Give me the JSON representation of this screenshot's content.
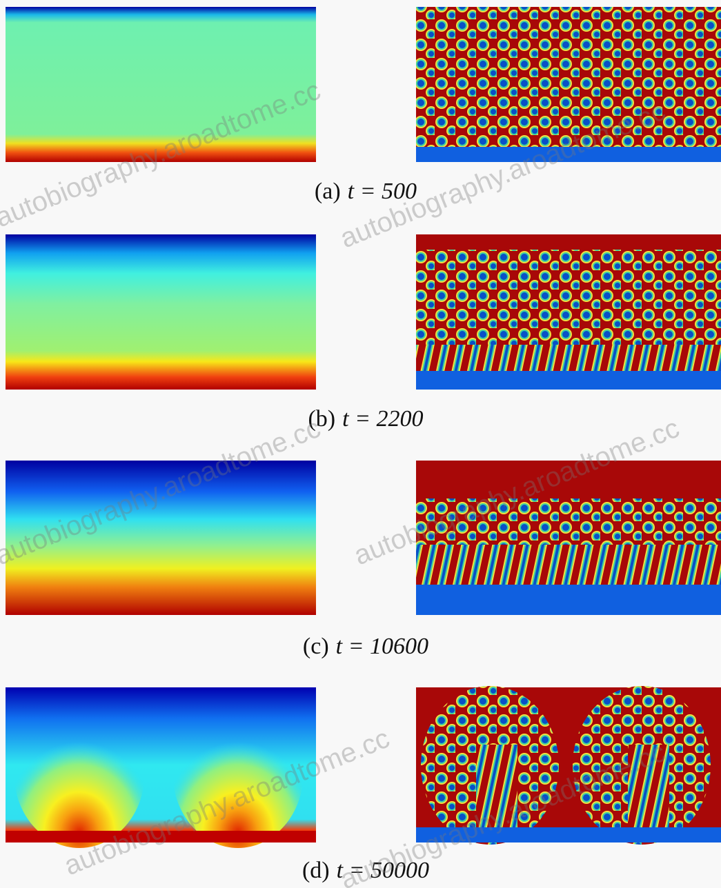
{
  "figure": {
    "panels": [
      {
        "label": "(a)",
        "caption": "t = 500"
      },
      {
        "label": "(b)",
        "caption": "t = 2200"
      },
      {
        "label": "(c)",
        "caption": "t = 10600"
      },
      {
        "label": "(d)",
        "caption": "t = 50000"
      }
    ],
    "watermark": "autobiography.aroadtome.cc"
  }
}
